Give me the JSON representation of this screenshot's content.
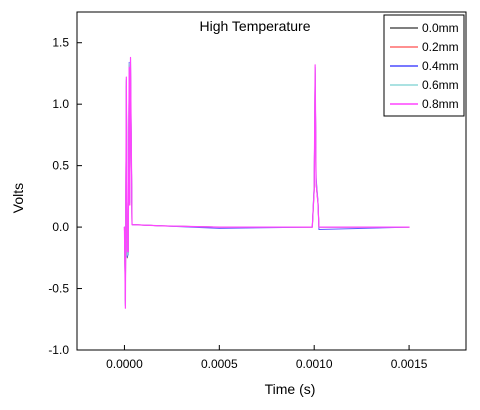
{
  "chart_data": {
    "type": "line",
    "title": "High Temperature",
    "xlabel": "Time (s)",
    "ylabel": "Volts",
    "xlim": [
      -0.00025,
      0.0018
    ],
    "ylim": [
      -1.0,
      1.75
    ],
    "x_ticks": [
      "0.0000",
      "0.0005",
      "0.0010",
      "0.0015"
    ],
    "x_tick_values": [
      0.0,
      0.0005,
      0.001,
      0.0015
    ],
    "y_ticks": [
      "-1.0",
      "-0.5",
      "0.0",
      "0.5",
      "1.0",
      "1.5"
    ],
    "y_tick_values": [
      -1.0,
      -0.5,
      0.0,
      0.5,
      1.0,
      1.5
    ],
    "grid": false,
    "legend_position": "top-right",
    "series": [
      {
        "name": "0.0mm",
        "color": "#555555",
        "points": [
          [
            0.0,
            0.0
          ],
          [
            5e-06,
            -0.6
          ],
          [
            1e-05,
            1.15
          ],
          [
            1.5e-05,
            -0.25
          ],
          [
            2e-05,
            -0.2
          ],
          [
            2.5e-05,
            1.3
          ],
          [
            2.8e-05,
            0.2
          ],
          [
            3.2e-05,
            1.25
          ],
          [
            4e-05,
            0.02
          ],
          [
            0.0002,
            0.01
          ],
          [
            0.0005,
            0.0
          ],
          [
            0.00099,
            0.0
          ],
          [
            0.001,
            0.3
          ],
          [
            0.001005,
            1.25
          ],
          [
            0.00101,
            0.35
          ],
          [
            0.00102,
            0.2
          ],
          [
            0.001025,
            0.0
          ],
          [
            0.0015,
            0.0
          ]
        ]
      },
      {
        "name": "0.2mm",
        "color": "#ff6b6b",
        "points": [
          [
            0.0,
            0.0
          ],
          [
            5e-06,
            -0.62
          ],
          [
            1e-05,
            1.18
          ],
          [
            1.5e-05,
            -0.22
          ],
          [
            2e-05,
            -0.21
          ],
          [
            2.5e-05,
            1.32
          ],
          [
            2.8e-05,
            0.18
          ],
          [
            3.2e-05,
            1.3
          ],
          [
            4e-05,
            0.02
          ],
          [
            0.0002,
            0.01
          ],
          [
            0.0005,
            0.0
          ],
          [
            0.00099,
            0.0
          ],
          [
            0.001,
            0.32
          ],
          [
            0.001005,
            1.28
          ],
          [
            0.00101,
            0.35
          ],
          [
            0.00102,
            0.19
          ],
          [
            0.001025,
            0.0
          ],
          [
            0.0015,
            0.0
          ]
        ]
      },
      {
        "name": "0.4mm",
        "color": "#4b4bff",
        "points": [
          [
            0.0,
            0.0
          ],
          [
            5e-06,
            -0.64
          ],
          [
            1e-05,
            1.2
          ],
          [
            1.5e-05,
            -0.24
          ],
          [
            2e-05,
            -0.22
          ],
          [
            2.5e-05,
            1.34
          ],
          [
            2.8e-05,
            0.2
          ],
          [
            3.2e-05,
            1.36
          ],
          [
            4e-05,
            0.02
          ],
          [
            0.0002,
            0.01
          ],
          [
            0.0005,
            -0.01
          ],
          [
            0.00099,
            0.0
          ],
          [
            0.001,
            0.35
          ],
          [
            0.001005,
            1.3
          ],
          [
            0.00101,
            0.4
          ],
          [
            0.00102,
            0.21
          ],
          [
            0.001025,
            -0.02
          ],
          [
            0.0015,
            0.0
          ]
        ]
      },
      {
        "name": "0.6mm",
        "color": "#8fd8d8",
        "points": [
          [
            0.0,
            0.0
          ],
          [
            5e-06,
            -0.63
          ],
          [
            1e-05,
            1.19
          ],
          [
            1.5e-05,
            -0.23
          ],
          [
            2e-05,
            -0.21
          ],
          [
            2.5e-05,
            1.33
          ],
          [
            2.8e-05,
            0.19
          ],
          [
            3.2e-05,
            1.33
          ],
          [
            4e-05,
            0.02
          ],
          [
            0.0002,
            0.01
          ],
          [
            0.0005,
            0.0
          ],
          [
            0.00099,
            0.0
          ],
          [
            0.001,
            0.33
          ],
          [
            0.001005,
            1.29
          ],
          [
            0.00101,
            0.37
          ],
          [
            0.00102,
            0.2
          ],
          [
            0.001025,
            0.0
          ],
          [
            0.0015,
            0.0
          ]
        ]
      },
      {
        "name": "0.8mm",
        "color": "#ff44ff",
        "points": [
          [
            0.0,
            0.0
          ],
          [
            5e-06,
            -0.66
          ],
          [
            1e-05,
            1.22
          ],
          [
            1.5e-05,
            -0.2
          ],
          [
            2e-05,
            -0.2
          ],
          [
            2.5e-05,
            1.3
          ],
          [
            2.8e-05,
            0.18
          ],
          [
            3.2e-05,
            1.38
          ],
          [
            4e-05,
            0.02
          ],
          [
            0.0002,
            0.01
          ],
          [
            0.0005,
            0.0
          ],
          [
            0.00099,
            0.0
          ],
          [
            0.001,
            0.31
          ],
          [
            0.001005,
            1.32
          ],
          [
            0.00101,
            0.36
          ],
          [
            0.00102,
            0.19
          ],
          [
            0.001025,
            0.0
          ],
          [
            0.0015,
            0.0
          ]
        ]
      }
    ]
  }
}
